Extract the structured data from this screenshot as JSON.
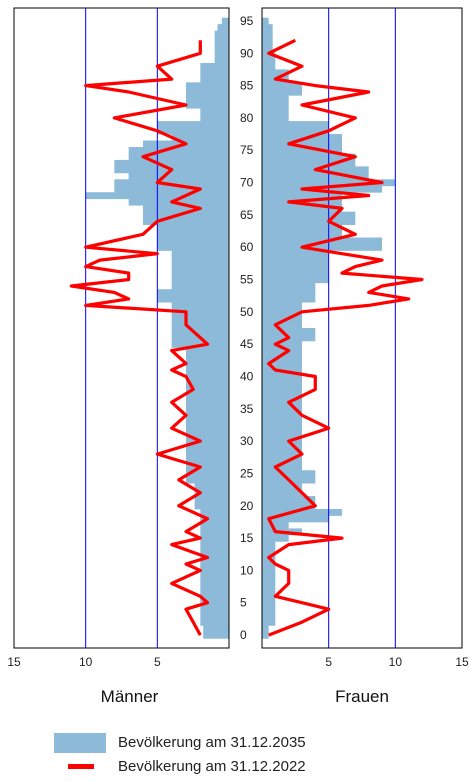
{
  "chart_data": {
    "type": "bar",
    "subtype": "population-pyramid",
    "left_label": "Männer",
    "right_label": "Frauen",
    "x_ticks": [
      "15",
      "10",
      "5",
      "5",
      "10",
      "15"
    ],
    "age_ticks": [
      "0",
      "5",
      "10",
      "15",
      "20",
      "25",
      "30",
      "35",
      "40",
      "45",
      "50",
      "55",
      "60",
      "65",
      "70",
      "75",
      "80",
      "85",
      "90",
      "95"
    ],
    "xlim": [
      0,
      15
    ],
    "ylim": [
      -2,
      97
    ],
    "grid": "vertical lines at 0, 5, 10",
    "legend_position": "bottom",
    "colors": {
      "bars": "#8dbad9",
      "line": "#ff0000",
      "grid": "#0000ff",
      "frame": "#000000"
    },
    "series": [
      {
        "name": "Bevölkerung am 31.12.2035",
        "type": "bar",
        "ages": [
          0,
          1,
          2,
          3,
          4,
          5,
          6,
          7,
          8,
          9,
          10,
          11,
          12,
          13,
          14,
          15,
          16,
          17,
          18,
          19,
          20,
          21,
          22,
          23,
          24,
          25,
          26,
          27,
          28,
          29,
          30,
          31,
          32,
          33,
          34,
          35,
          36,
          37,
          38,
          39,
          40,
          41,
          42,
          43,
          44,
          45,
          46,
          47,
          48,
          49,
          50,
          51,
          52,
          53,
          54,
          55,
          56,
          57,
          58,
          59,
          60,
          61,
          62,
          63,
          64,
          65,
          66,
          67,
          68,
          69,
          70,
          71,
          72,
          73,
          74,
          75,
          76,
          77,
          78,
          79,
          80,
          81,
          82,
          83,
          84,
          85,
          86,
          87,
          88,
          89,
          90,
          91,
          92,
          93,
          94,
          95
        ],
        "male": [
          1.8,
          1.8,
          2,
          2,
          2,
          2,
          2,
          2,
          2,
          2,
          2,
          2,
          2,
          2,
          2,
          2,
          2,
          2,
          2,
          2,
          2.4,
          2.4,
          2.4,
          2.4,
          3,
          3,
          3,
          3,
          3,
          3,
          3,
          3,
          3,
          3,
          3,
          3,
          3,
          3,
          3,
          3,
          3,
          3,
          3,
          3,
          3,
          4,
          4,
          4,
          4,
          4,
          4,
          4,
          5,
          5,
          4,
          4,
          4,
          4,
          4,
          4,
          5,
          5,
          5,
          5,
          6,
          6,
          6,
          7,
          10,
          8,
          8,
          7,
          8,
          8,
          7,
          7,
          6,
          4,
          5,
          5,
          2,
          2,
          3,
          3,
          3,
          3,
          2,
          2,
          2,
          1,
          1,
          1,
          1,
          1,
          0.8,
          0.5
        ],
        "female": [
          0.5,
          0.5,
          1,
          1,
          1,
          1,
          1,
          1,
          1,
          1,
          1,
          1,
          1,
          1,
          1,
          2,
          3,
          2,
          5,
          6,
          4,
          4,
          3,
          3,
          4,
          4,
          3,
          3,
          3,
          3,
          3,
          3,
          3,
          3,
          3,
          3,
          3,
          3,
          3,
          3,
          3,
          3,
          3,
          3,
          3,
          3,
          4,
          4,
          3,
          3,
          3,
          3,
          4,
          4,
          4,
          5,
          5,
          5,
          5,
          5,
          9,
          9,
          6,
          6,
          7,
          7,
          6,
          6,
          6,
          9,
          10,
          8,
          8,
          7,
          7,
          6,
          6,
          6,
          5,
          5,
          2,
          2,
          2,
          2,
          3,
          3,
          2,
          2,
          1,
          1,
          1,
          0.8,
          0.8,
          0.8,
          0.8,
          0.5
        ],
        "unit": "percent"
      },
      {
        "name": "Bevölkerung am 31.12.2022",
        "type": "line",
        "ages": [
          0,
          2,
          4,
          5,
          6,
          8,
          10,
          11,
          12,
          14,
          15,
          16,
          18,
          20,
          22,
          24,
          26,
          28,
          30,
          32,
          34,
          36,
          38,
          40,
          41,
          42,
          44,
          45,
          46,
          48,
          50,
          51,
          52,
          53,
          54,
          55,
          56,
          57,
          58,
          59,
          60,
          62,
          64,
          66,
          67,
          68,
          69,
          70,
          72,
          74,
          76,
          78,
          80,
          82,
          84,
          85,
          86,
          88,
          90,
          92
        ],
        "male": [
          2,
          2.5,
          3,
          1.5,
          2,
          4,
          2,
          3,
          1.5,
          4,
          2,
          3,
          1.5,
          3.5,
          2,
          3.5,
          2,
          5,
          2,
          4,
          3,
          4,
          2.5,
          3,
          4,
          3,
          4,
          1.5,
          2,
          3,
          3,
          10,
          7,
          8,
          11,
          7,
          7,
          10,
          9,
          5,
          10,
          6,
          5,
          2,
          4,
          3,
          2,
          5,
          4,
          6,
          3,
          5,
          8,
          3,
          7,
          10,
          4,
          5,
          2,
          2
        ],
        "female": [
          0.5,
          3,
          5,
          3,
          1,
          2,
          2,
          1,
          0.5,
          2,
          6,
          1,
          0.5,
          4,
          3,
          2,
          1,
          3,
          2,
          5,
          3,
          2,
          4,
          4,
          1,
          0.5,
          2,
          1,
          2,
          1,
          3,
          8,
          11,
          8,
          9,
          12,
          6,
          7,
          9,
          6,
          3,
          7,
          5,
          6,
          2,
          8,
          3,
          9,
          4,
          7,
          2,
          5,
          7,
          3,
          8,
          4,
          1,
          3,
          0.5,
          2.5
        ],
        "unit": "percent"
      }
    ]
  },
  "legend": {
    "bar_label": "Bevölkerung am 31.12.2035",
    "line_label": "Bevölkerung am 31.12.2022"
  }
}
